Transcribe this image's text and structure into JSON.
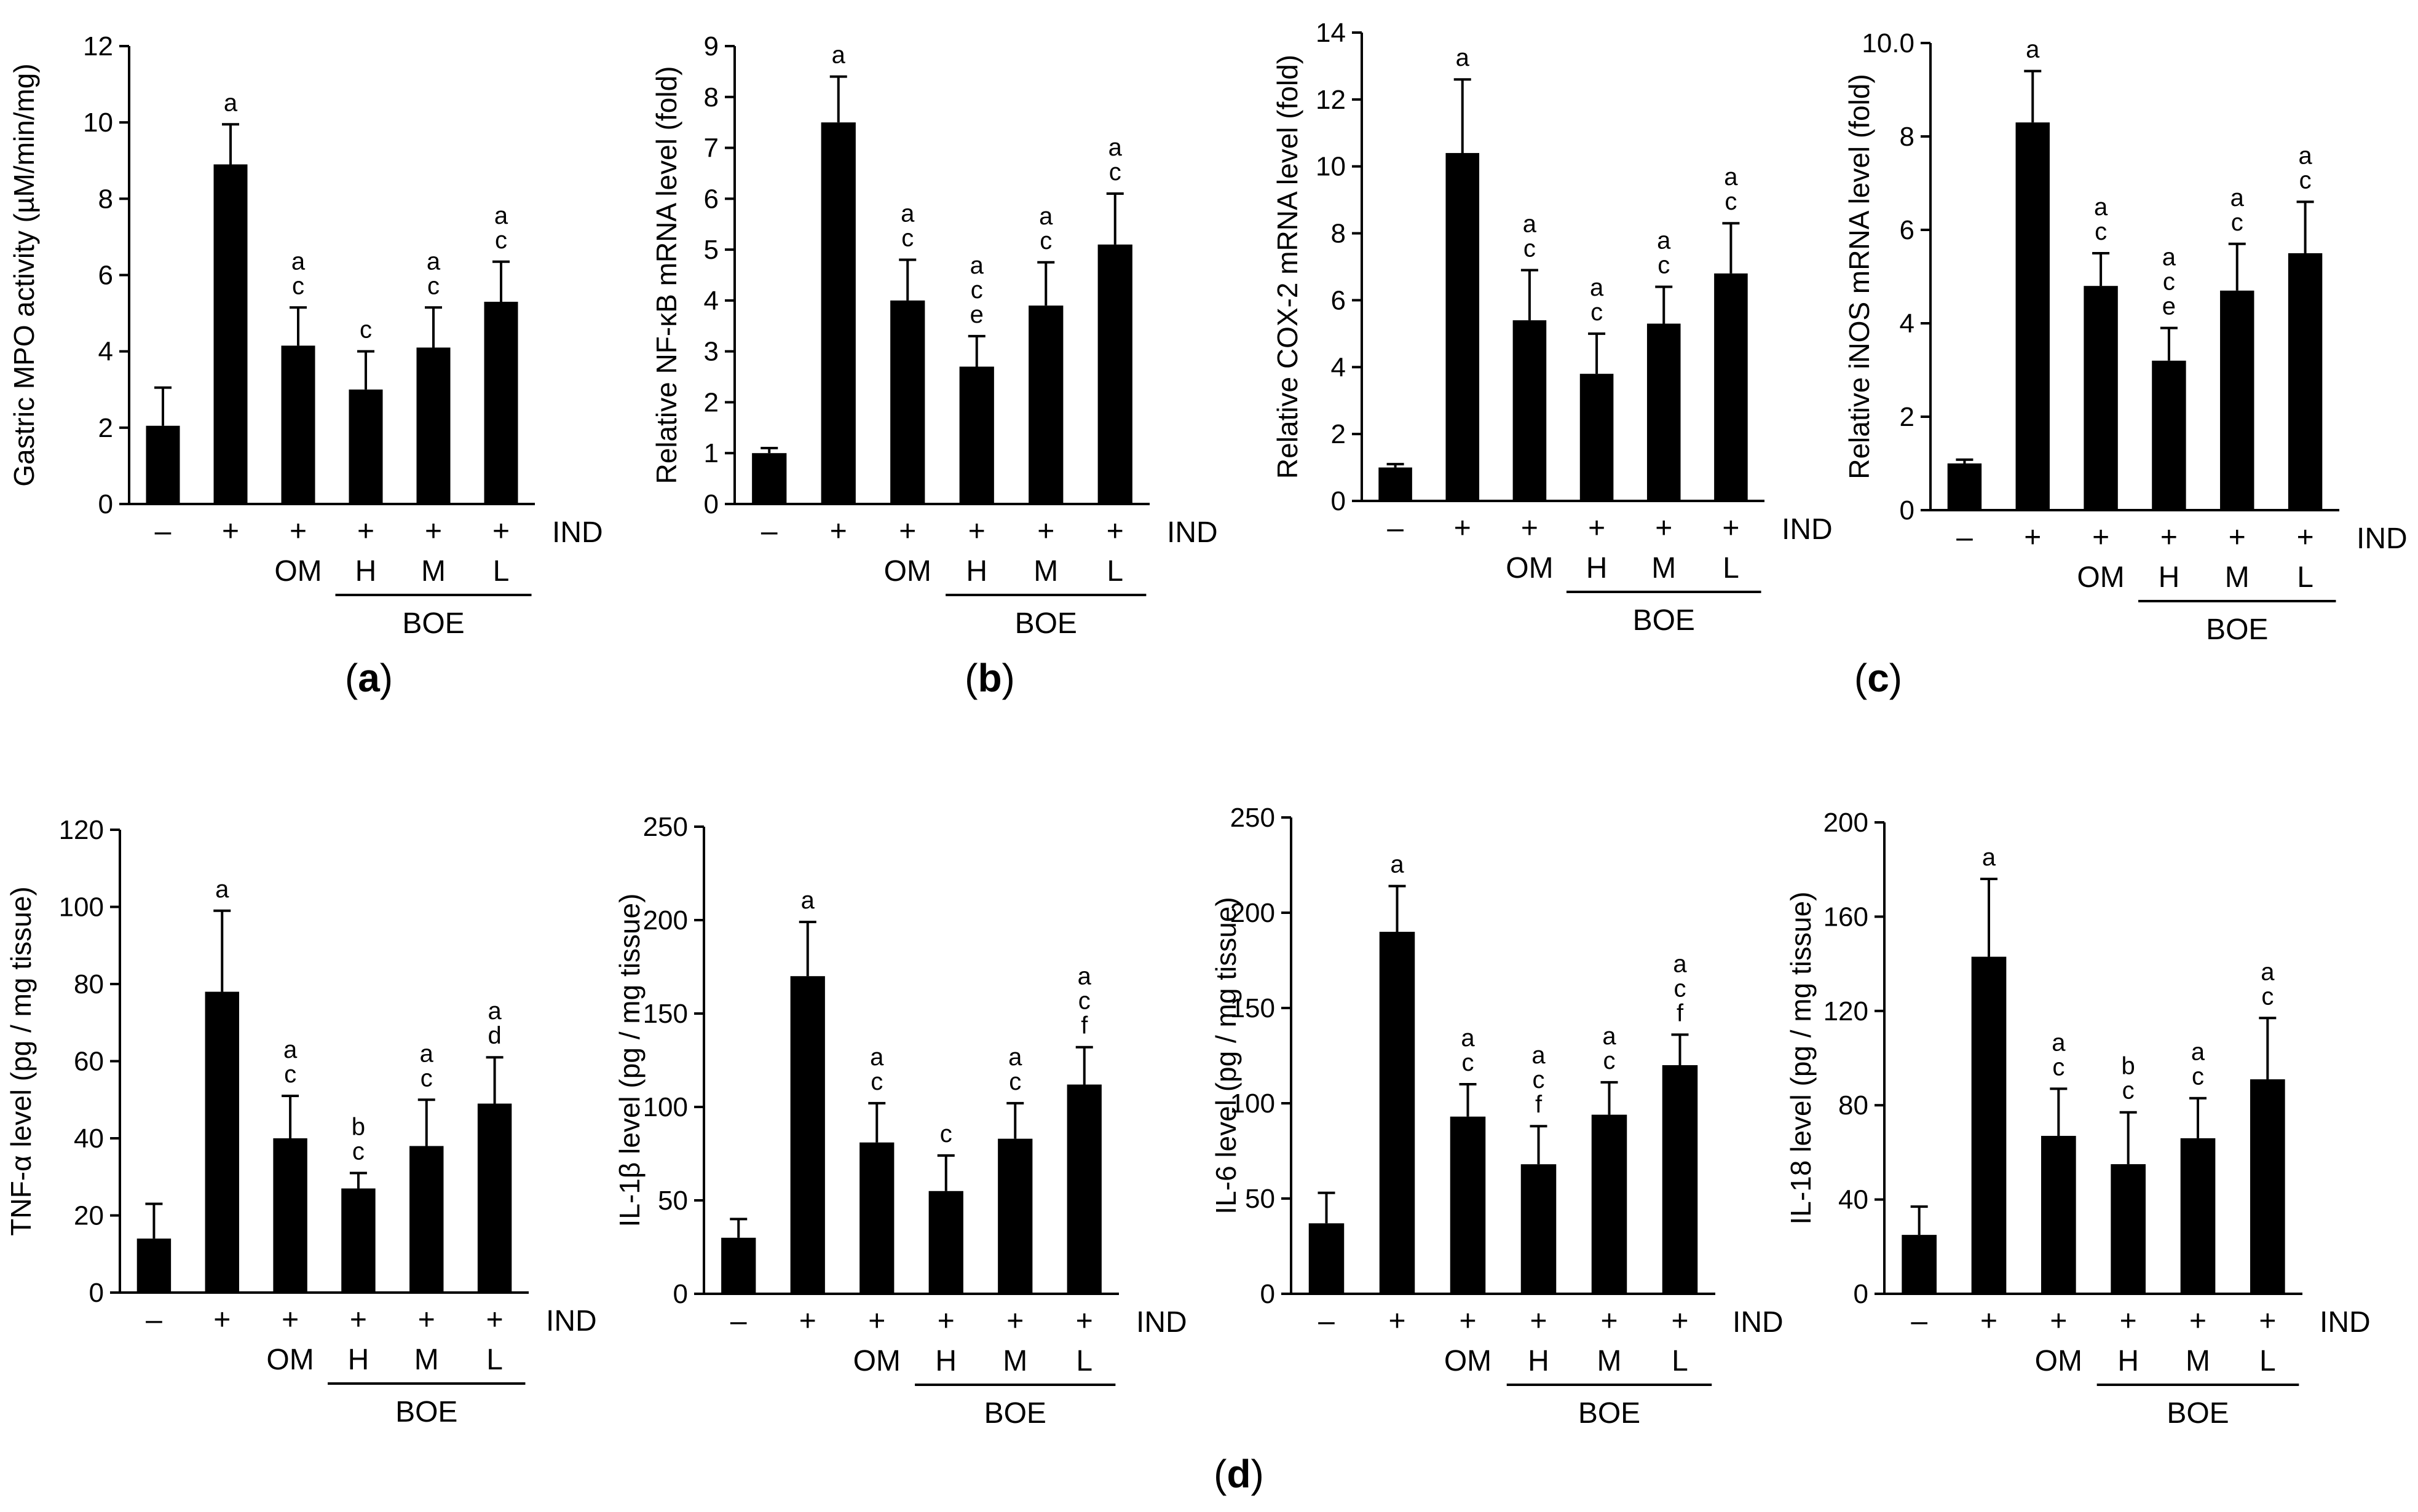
{
  "chart_data": [
    {
      "type": "bar",
      "panel": "a",
      "ylabel": "Gastric MPO activity (µM/min/mg)",
      "ylim": [
        0,
        12
      ],
      "yticks": [
        "0",
        "2",
        "4",
        "6",
        "8",
        "10",
        "12"
      ],
      "categories": [
        "–",
        "+",
        "+",
        "+",
        "+",
        "+"
      ],
      "sublabels": [
        "",
        "",
        "OM",
        "H",
        "M",
        "L"
      ],
      "values": [
        2.05,
        8.9,
        4.15,
        3.0,
        4.1,
        5.3
      ],
      "errors": [
        1.0,
        1.05,
        1.0,
        1.0,
        1.05,
        1.05
      ],
      "significance": [
        [],
        [
          "a"
        ],
        [
          "a",
          "c"
        ],
        [
          "c"
        ],
        [
          "a",
          "c"
        ],
        [
          "a",
          "c"
        ]
      ]
    },
    {
      "type": "bar",
      "panel": "b",
      "ylabel": "Relative NF-κB mRNA level (fold)",
      "ylim": [
        0,
        9
      ],
      "yticks": [
        "0",
        "1",
        "2",
        "3",
        "4",
        "5",
        "6",
        "7",
        "8",
        "9"
      ],
      "categories": [
        "–",
        "+",
        "+",
        "+",
        "+",
        "+"
      ],
      "sublabels": [
        "",
        "",
        "OM",
        "H",
        "M",
        "L"
      ],
      "values": [
        1.0,
        7.5,
        4.0,
        2.7,
        3.9,
        5.1
      ],
      "errors": [
        0.1,
        0.9,
        0.8,
        0.6,
        0.85,
        1.0
      ],
      "significance": [
        [],
        [
          "a"
        ],
        [
          "a",
          "c"
        ],
        [
          "a",
          "c",
          "e"
        ],
        [
          "a",
          "c"
        ],
        [
          "a",
          "c"
        ]
      ]
    },
    {
      "type": "bar",
      "panel": "c-left",
      "ylabel": "Relative COX-2 mRNA level (fold)",
      "ylim": [
        0,
        14
      ],
      "yticks": [
        "0",
        "2",
        "4",
        "6",
        "8",
        "10",
        "12",
        "14"
      ],
      "categories": [
        "–",
        "+",
        "+",
        "+",
        "+",
        "+"
      ],
      "sublabels": [
        "",
        "",
        "OM",
        "H",
        "M",
        "L"
      ],
      "values": [
        1.0,
        10.4,
        5.4,
        3.8,
        5.3,
        6.8
      ],
      "errors": [
        0.1,
        2.2,
        1.5,
        1.2,
        1.1,
        1.5
      ],
      "significance": [
        [],
        [
          "a"
        ],
        [
          "a",
          "c"
        ],
        [
          "a",
          "c"
        ],
        [
          "a",
          "c"
        ],
        [
          "a",
          "c"
        ]
      ]
    },
    {
      "type": "bar",
      "panel": "c-right",
      "ylabel": "Relative iNOS mRNA level (fold)",
      "ylim": [
        0,
        10
      ],
      "yticks": [
        "0",
        "2",
        "4",
        "6",
        "8",
        "10.0"
      ],
      "categories": [
        "–",
        "+",
        "+",
        "+",
        "+",
        "+"
      ],
      "sublabels": [
        "",
        "",
        "OM",
        "H",
        "M",
        "L"
      ],
      "values": [
        1.0,
        8.3,
        4.8,
        3.2,
        4.7,
        5.5
      ],
      "errors": [
        0.08,
        1.1,
        0.7,
        0.7,
        1.0,
        1.1
      ],
      "significance": [
        [],
        [
          "a"
        ],
        [
          "a",
          "c"
        ],
        [
          "a",
          "c",
          "e"
        ],
        [
          "a",
          "c"
        ],
        [
          "a",
          "c"
        ]
      ]
    },
    {
      "type": "bar",
      "panel": "d-1",
      "ylabel": "TNF-α level (pg / mg tissue)",
      "ylim": [
        0,
        120
      ],
      "yticks": [
        "0",
        "20",
        "40",
        "60",
        "80",
        "100",
        "120"
      ],
      "categories": [
        "–",
        "+",
        "+",
        "+",
        "+",
        "+"
      ],
      "sublabels": [
        "",
        "",
        "OM",
        "H",
        "M",
        "L"
      ],
      "values": [
        14,
        78,
        40,
        27,
        38,
        49
      ],
      "errors": [
        9,
        21,
        11,
        4,
        12,
        12
      ],
      "significance": [
        [],
        [
          "a"
        ],
        [
          "a",
          "c"
        ],
        [
          "b",
          "c"
        ],
        [
          "a",
          "c"
        ],
        [
          "a",
          "d"
        ]
      ]
    },
    {
      "type": "bar",
      "panel": "d-2",
      "ylabel": "IL-1β level (pg / mg tissue)",
      "ylim": [
        0,
        250
      ],
      "yticks": [
        "0",
        "50",
        "100",
        "150",
        "200",
        "250"
      ],
      "categories": [
        "–",
        "+",
        "+",
        "+",
        "+",
        "+"
      ],
      "sublabels": [
        "",
        "",
        "OM",
        "H",
        "M",
        "L"
      ],
      "values": [
        30,
        170,
        81,
        55,
        83,
        112
      ],
      "errors": [
        10,
        29,
        21,
        19,
        19,
        20
      ],
      "significance": [
        [],
        [
          "a"
        ],
        [
          "a",
          "c"
        ],
        [
          "c"
        ],
        [
          "a",
          "c"
        ],
        [
          "a",
          "c",
          "f"
        ]
      ]
    },
    {
      "type": "bar",
      "panel": "d-3",
      "ylabel": "IL-6 level (pg / mg tissue)",
      "ylim": [
        0,
        250
      ],
      "yticks": [
        "0",
        "50",
        "100",
        "150",
        "200",
        "250"
      ],
      "categories": [
        "–",
        "+",
        "+",
        "+",
        "+",
        "+"
      ],
      "sublabels": [
        "",
        "",
        "OM",
        "H",
        "M",
        "L"
      ],
      "values": [
        37,
        190,
        93,
        68,
        94,
        120
      ],
      "errors": [
        16,
        24,
        17,
        20,
        17,
        16
      ],
      "significance": [
        [],
        [
          "a"
        ],
        [
          "a",
          "c"
        ],
        [
          "a",
          "c",
          "f"
        ],
        [
          "a",
          "c"
        ],
        [
          "a",
          "c",
          "f"
        ]
      ]
    },
    {
      "type": "bar",
      "panel": "d-4",
      "ylabel": "IL-18 level (pg / mg tissue)",
      "ylim": [
        0,
        200
      ],
      "yticks": [
        "0",
        "40",
        "80",
        "120",
        "160",
        "200"
      ],
      "categories": [
        "–",
        "+",
        "+",
        "+",
        "+",
        "+"
      ],
      "sublabels": [
        "",
        "",
        "OM",
        "H",
        "M",
        "L"
      ],
      "values": [
        25,
        143,
        67,
        55,
        66,
        91
      ],
      "errors": [
        12,
        33,
        20,
        22,
        17,
        26
      ],
      "significance": [
        [],
        [
          "a"
        ],
        [
          "a",
          "c"
        ],
        [
          "b",
          "c"
        ],
        [
          "a",
          "c"
        ],
        [
          "a",
          "c"
        ]
      ]
    }
  ],
  "labels": {
    "treatment": "IND",
    "group": "BOE"
  },
  "panel_labels": [
    "a",
    "b",
    "c",
    "d"
  ],
  "colors": {
    "bar": "#000000",
    "axis": "#000000",
    "background": "#ffffff"
  }
}
